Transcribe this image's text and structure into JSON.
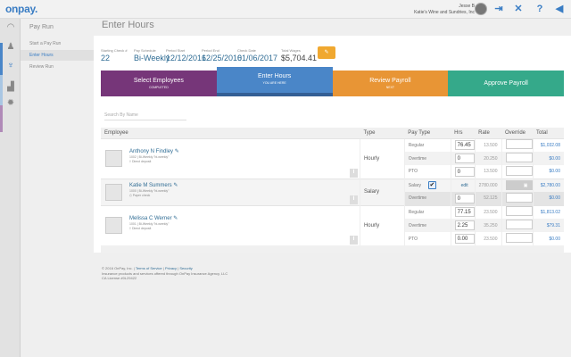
{
  "header": {
    "logo": "onpay.",
    "user_name": "Jesse B",
    "company": "Katie's Wine and Sundries, Inc",
    "icons": [
      "logout-icon",
      "expand-icon",
      "help-icon",
      "megaphone-icon"
    ]
  },
  "sidebar": {
    "icons": [
      "dashboard-icon",
      "people-icon",
      "payroll-icon",
      "reports-icon",
      "settings-icon"
    ],
    "colors": [
      "#4a86c8",
      "#a9c6e3",
      "#b08ab8"
    ]
  },
  "subnav": {
    "title": "Pay Run",
    "items": [
      {
        "label": "Start a Pay Run"
      },
      {
        "label": "Enter Hours",
        "active": true
      },
      {
        "label": "Review Run"
      }
    ]
  },
  "page": {
    "title": "Enter Hours"
  },
  "info": {
    "starting_check_label": "Starting Check #",
    "starting_check": "22",
    "schedule_label": "Pay Schedule",
    "schedule": "Bi-Weekly",
    "period_start_label": "Period Start",
    "period_start": "12/12/2016",
    "period_end_label": "Period End",
    "period_end": "12/25/2016",
    "check_date_label": "Check Date",
    "check_date": "01/06/2017",
    "total_wages_label": "Total Wages",
    "total_wages": "$5,704.41",
    "edit_icon": "pencil-icon"
  },
  "steps": [
    {
      "title": "Select Employees",
      "sub": "COMPLETED",
      "color": "#763679"
    },
    {
      "title": "Enter Hours",
      "sub": "YOU ARE HERE",
      "color": "#4a86c8"
    },
    {
      "title": "Review Payroll",
      "sub": "NEXT",
      "color": "#e89535"
    },
    {
      "title": "Approve Payroll",
      "sub": "",
      "color": "#35a98a"
    }
  ],
  "search": {
    "placeholder": "Search By Name"
  },
  "table": {
    "headers": [
      "Employee",
      "Type",
      "Pay Type",
      "Hrs",
      "Rate",
      "Override",
      "Total"
    ],
    "employees": [
      {
        "name": "Anthony N Findley",
        "meta": "1002 | Bi-Weekly \"bi-weekly\"",
        "deposit": "Direct deposit",
        "type": "Hourly",
        "rows": [
          {
            "pay_type": "Regular",
            "hrs": "76.45",
            "rate": "13.500",
            "total": "$1,032.08"
          },
          {
            "pay_type": "Overtime",
            "hrs": "0",
            "rate": "20.250",
            "total": "$0.00"
          },
          {
            "pay_type": "PTO",
            "hrs": "0",
            "rate": "13.500",
            "total": "$0.00"
          }
        ]
      },
      {
        "name": "Katie M Summers",
        "meta": "1000 | Bi-Weekly \"bi-weekly\"",
        "deposit": "Paper check",
        "type": "Salary",
        "rows": [
          {
            "pay_type": "Salary",
            "hrs": "edit",
            "rate": "2780.000",
            "total": "$2,780.00",
            "checked": true
          },
          {
            "pay_type": "Overtime",
            "hrs": "0",
            "rate": "52.125",
            "total": "$0.00"
          }
        ]
      },
      {
        "name": "Melissa C Werner",
        "meta": "1001 | Bi-Weekly \"bi-weekly\"",
        "deposit": "Direct deposit",
        "type": "Hourly",
        "rows": [
          {
            "pay_type": "Regular",
            "hrs": "77.15",
            "rate": "23.500",
            "total": "$1,813.02"
          },
          {
            "pay_type": "Overtime",
            "hrs": "2.25",
            "rate": "35.250",
            "total": "$79.31"
          },
          {
            "pay_type": "PTO",
            "hrs": "0.00",
            "rate": "23.500",
            "total": "$0.00"
          }
        ]
      }
    ]
  },
  "footer": {
    "copyright": "© 2016 OnPay, Inc. |",
    "terms": "Terms of Service",
    "privacy": "Privacy",
    "security": "Security",
    "line2": "Insurance products and services offered through OnPay Insurance Agency, LLC",
    "line3": "CA License #0L29422"
  }
}
